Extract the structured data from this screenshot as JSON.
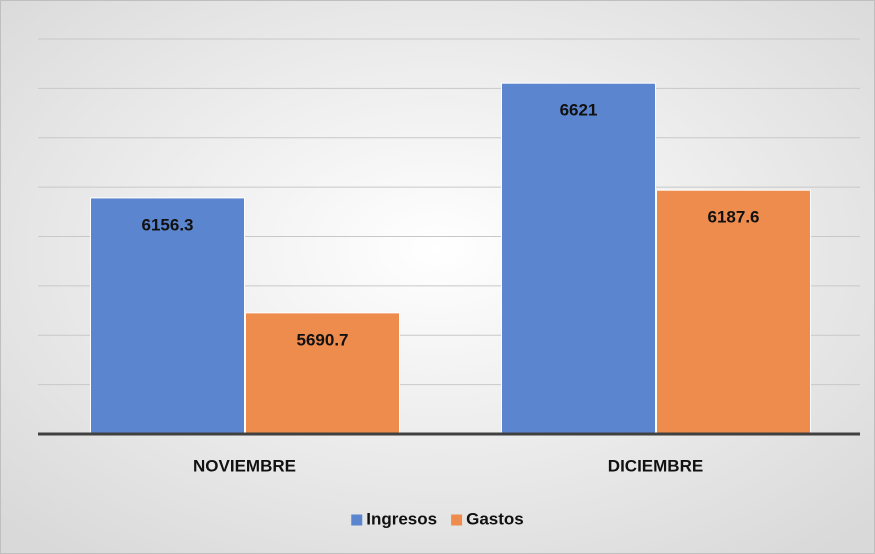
{
  "chart_data": {
    "type": "bar",
    "categories": [
      "NOVIEMBRE",
      "DICIEMBRE"
    ],
    "series": [
      {
        "name": "Ingresos",
        "color": "#5b86cf",
        "values": [
          6156.3,
          6621
        ]
      },
      {
        "name": "Gastos",
        "color": "#ee8c4e",
        "values": [
          5690.7,
          6187.6
        ]
      }
    ],
    "ylim": [
      5200,
      6800
    ],
    "yticks": [
      5200,
      5400,
      5600,
      5800,
      6000,
      6200,
      6400,
      6600,
      6800
    ],
    "grid": true,
    "legend": "bottom"
  }
}
